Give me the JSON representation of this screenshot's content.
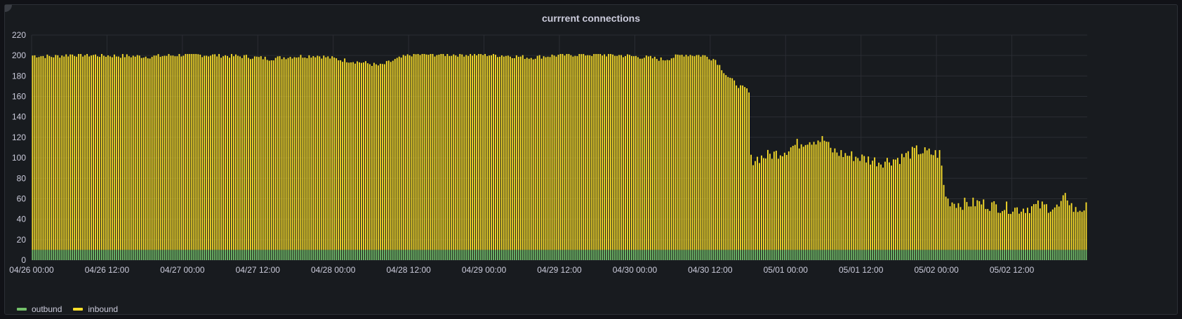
{
  "panel": {
    "title": "currrent connections"
  },
  "colors": {
    "inbound": "#fade2a",
    "outbound": "#73bf69",
    "grid": "#2a2d33",
    "axis_text": "#ccccdc"
  },
  "chart_data": {
    "type": "bar",
    "stacked": true,
    "title": "currrent connections",
    "xlabel": "",
    "ylabel": "",
    "ylim": [
      0,
      220
    ],
    "y_ticks": [
      0,
      20,
      40,
      60,
      80,
      100,
      120,
      140,
      160,
      180,
      200,
      220
    ],
    "x_ticks": [
      "04/26 00:00",
      "04/26 12:00",
      "04/27 00:00",
      "04/27 12:00",
      "04/28 00:00",
      "04/28 12:00",
      "04/29 00:00",
      "04/29 12:00",
      "04/30 00:00",
      "04/30 12:00",
      "05/01 00:00",
      "05/01 12:00",
      "05/02 00:00",
      "05/02 12:00"
    ],
    "x_range": [
      "04/26 00:00",
      "05/02 23:00"
    ],
    "interval_minutes": 20,
    "grid": true,
    "legend_position": "bottom-left",
    "series": [
      {
        "name": "outbund",
        "color": "#73bf69",
        "values": [
          10
        ]
      },
      {
        "name": "inbound",
        "color": "#fade2a",
        "segments": [
          {
            "from": "04/26 00:00",
            "to": "04/26 12:00",
            "value": 190,
            "note": "≈190 (total ≈200)"
          },
          {
            "from": "04/26 12:00",
            "to": "04/28 00:00",
            "value": 190
          },
          {
            "from": "04/28 00:00",
            "to": "04/28 12:00",
            "value": 180
          },
          {
            "from": "04/28 12:00",
            "to": "04/30 12:00",
            "value": 190
          },
          {
            "from": "04/30 12:00",
            "to": "04/30 18:00",
            "value": 160
          },
          {
            "from": "04/30 18:00",
            "to": "05/01 12:00",
            "value": 100
          },
          {
            "from": "05/01 12:00",
            "to": "05/01 22:00",
            "value": 90
          },
          {
            "from": "05/01 22:00",
            "to": "05/02 23:00",
            "value": 42
          }
        ],
        "totals_profile": [
          [
            0,
            200
          ],
          [
            10,
            199
          ],
          [
            20,
            201
          ],
          [
            36,
            200
          ],
          [
            60,
            199
          ],
          [
            78,
            201
          ],
          [
            96,
            200
          ],
          [
            108,
            199
          ],
          [
            120,
            197
          ],
          [
            132,
            199
          ],
          [
            144,
            200
          ],
          [
            156,
            196
          ],
          [
            168,
            193
          ],
          [
            176,
            190
          ],
          [
            184,
            196
          ],
          [
            192,
            201
          ],
          [
            204,
            201
          ],
          [
            216,
            201
          ],
          [
            228,
            201
          ],
          [
            240,
            200
          ],
          [
            252,
            198
          ],
          [
            264,
            200
          ],
          [
            276,
            201
          ],
          [
            288,
            201
          ],
          [
            300,
            200
          ],
          [
            312,
            198
          ],
          [
            320,
            196
          ],
          [
            330,
            201
          ],
          [
            340,
            200
          ],
          [
            346,
            196
          ],
          [
            352,
            180
          ],
          [
            358,
            170
          ],
          [
            363,
            166
          ],
          [
            364,
            98
          ],
          [
            372,
            102
          ],
          [
            380,
            106
          ],
          [
            386,
            112
          ],
          [
            392,
            117
          ],
          [
            398,
            118
          ],
          [
            402,
            117
          ],
          [
            404,
            108
          ],
          [
            410,
            104
          ],
          [
            420,
            100
          ],
          [
            430,
            96
          ],
          [
            440,
            100
          ],
          [
            448,
            107
          ],
          [
            456,
            104
          ],
          [
            460,
            104
          ],
          [
            462,
            68
          ],
          [
            464,
            58
          ],
          [
            470,
            55
          ],
          [
            480,
            56
          ],
          [
            490,
            52
          ],
          [
            500,
            50
          ],
          [
            510,
            53
          ],
          [
            520,
            51
          ],
          [
            524,
            63
          ],
          [
            528,
            48
          ],
          [
            535,
            52
          ]
        ]
      }
    ]
  }
}
